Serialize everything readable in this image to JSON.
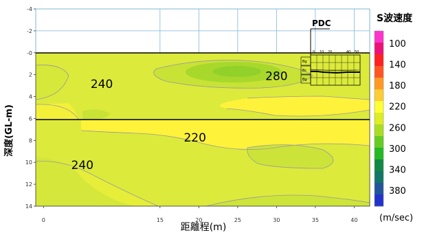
{
  "chart_data": {
    "type": "contour",
    "title": "",
    "xlabel": "距離程(m)",
    "ylabel": "深度(GL-m)",
    "xlim": [
      -1,
      42
    ],
    "ylim": [
      -4,
      14
    ],
    "x_ticks": [
      0,
      15,
      20,
      25,
      30,
      35,
      40
    ],
    "y_ticks": [
      "-4",
      "-2",
      "-0",
      "2",
      "4",
      "6",
      "8",
      "10",
      "12",
      "14"
    ],
    "layer_boundary_depth": 6,
    "contour_labels": [
      {
        "text": "240",
        "x": 7.5,
        "y": 3.2
      },
      {
        "text": "280",
        "x": 30,
        "y": 2.5
      },
      {
        "text": "220",
        "x": 19.5,
        "y": 8.1
      },
      {
        "text": "240",
        "x": 5,
        "y": 10.6
      }
    ],
    "legend": {
      "title": "S波速度",
      "unit": "(m/sec)",
      "labels": [
        "100",
        "140",
        "180",
        "220",
        "260",
        "300",
        "340",
        "380"
      ],
      "colors": [
        "#ff33cc",
        "#ee1177",
        "#ff2222",
        "#ff5522",
        "#ff9922",
        "#ffcc33",
        "#ffff33",
        "#ddee22",
        "#aadd22",
        "#66cc22",
        "#22bb22",
        "#118844",
        "#117766",
        "#225599",
        "#2233cc"
      ]
    },
    "inset": {
      "title": "PDC",
      "scale_labels": [
        "0",
        "10",
        "20",
        "40",
        "50"
      ],
      "row_labels": [
        "Bg",
        "Bc",
        "Bg"
      ]
    }
  }
}
